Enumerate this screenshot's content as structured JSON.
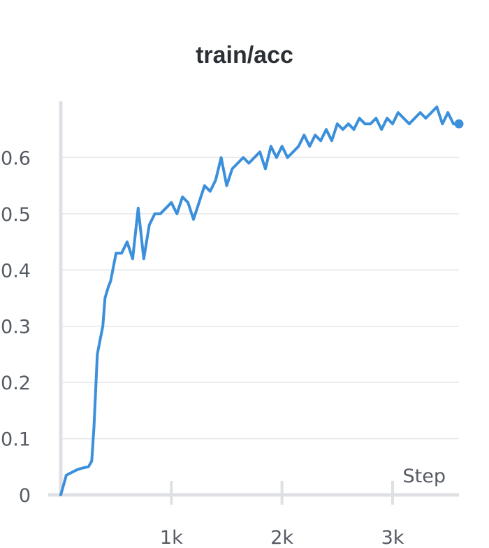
{
  "chart_data": {
    "type": "line",
    "title": "train/acc",
    "xlabel": "Step",
    "ylabel": "",
    "xlim": [
      0,
      3600
    ],
    "ylim": [
      0,
      0.7
    ],
    "grid": true,
    "x_ticks": [
      {
        "value": 1000,
        "label": "1k"
      },
      {
        "value": 2000,
        "label": "2k"
      },
      {
        "value": 3000,
        "label": "3k"
      }
    ],
    "y_ticks": [
      {
        "value": 0,
        "label": "0"
      },
      {
        "value": 0.1,
        "label": "0.1"
      },
      {
        "value": 0.2,
        "label": "0.2"
      },
      {
        "value": 0.3,
        "label": "0.3"
      },
      {
        "value": 0.4,
        "label": "0.4"
      },
      {
        "value": 0.5,
        "label": "0.5"
      },
      {
        "value": 0.6,
        "label": "0.6"
      }
    ],
    "series_color": "#3b8fdb",
    "series": [
      {
        "x": [
          0,
          50,
          100,
          150,
          200,
          250,
          280,
          300,
          330,
          350,
          380,
          400,
          430,
          450,
          480,
          500,
          550,
          600,
          650,
          700,
          750,
          800,
          850,
          900,
          950,
          1000,
          1050,
          1100,
          1150,
          1200,
          1250,
          1300,
          1350,
          1400,
          1450,
          1500,
          1550,
          1600,
          1650,
          1700,
          1750,
          1800,
          1850,
          1900,
          1950,
          2000,
          2050,
          2100,
          2150,
          2200,
          2250,
          2300,
          2350,
          2400,
          2450,
          2500,
          2550,
          2600,
          2650,
          2700,
          2750,
          2800,
          2850,
          2900,
          2950,
          3000,
          3050,
          3100,
          3150,
          3200,
          3250,
          3300,
          3350,
          3400,
          3450,
          3500,
          3550,
          3600
        ],
        "y": [
          0.0,
          0.035,
          0.04,
          0.045,
          0.048,
          0.05,
          0.06,
          0.12,
          0.25,
          0.27,
          0.3,
          0.35,
          0.37,
          0.38,
          0.41,
          0.43,
          0.43,
          0.45,
          0.42,
          0.51,
          0.42,
          0.48,
          0.5,
          0.5,
          0.51,
          0.52,
          0.5,
          0.53,
          0.52,
          0.49,
          0.52,
          0.55,
          0.54,
          0.56,
          0.6,
          0.55,
          0.58,
          0.59,
          0.6,
          0.59,
          0.6,
          0.61,
          0.58,
          0.62,
          0.6,
          0.62,
          0.6,
          0.61,
          0.62,
          0.64,
          0.62,
          0.64,
          0.63,
          0.65,
          0.63,
          0.66,
          0.65,
          0.66,
          0.65,
          0.67,
          0.66,
          0.66,
          0.67,
          0.65,
          0.67,
          0.66,
          0.68,
          0.67,
          0.66,
          0.67,
          0.68,
          0.67,
          0.68,
          0.69,
          0.66,
          0.68,
          0.66,
          0.66
        ]
      }
    ]
  }
}
